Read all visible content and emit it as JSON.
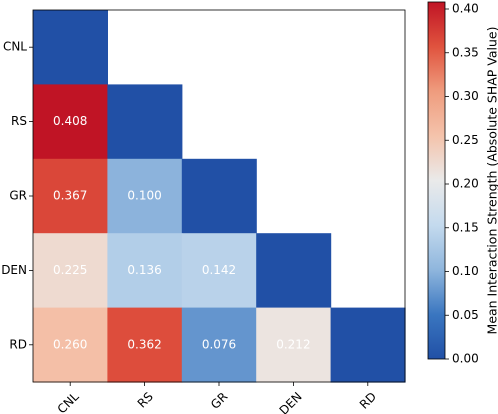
{
  "chart_data": {
    "type": "heatmap",
    "title": "",
    "xlabel": "",
    "ylabel": "",
    "x_labels": [
      "CNL",
      "RS",
      "GR",
      "DEN",
      "RD"
    ],
    "y_labels": [
      "CNL",
      "RS",
      "GR",
      "DEN",
      "RD"
    ],
    "mask": "upper-triangle (diagonal cells drawn at colorbar minimum, upper cells blank)",
    "values": [
      [
        0.0,
        null,
        null,
        null,
        null
      ],
      [
        0.408,
        0.0,
        null,
        null,
        null
      ],
      [
        0.367,
        0.1,
        0.0,
        null,
        null
      ],
      [
        0.225,
        0.136,
        0.142,
        0.0,
        null
      ],
      [
        0.26,
        0.362,
        0.076,
        0.212,
        0.0
      ]
    ],
    "cell_labels": [
      [
        "",
        "",
        "",
        "",
        ""
      ],
      [
        "0.408",
        "",
        "",
        "",
        ""
      ],
      [
        "0.367",
        "0.100",
        "",
        "",
        ""
      ],
      [
        "0.225",
        "0.136",
        "0.142",
        "",
        ""
      ],
      [
        "0.260",
        "0.362",
        "0.076",
        "0.212",
        ""
      ]
    ],
    "colorbar": {
      "label": "Mean Interaction Strength (Absolute SHAP Value)",
      "range": [
        0.0,
        0.408
      ],
      "ticks": [
        "0.00",
        "0.05",
        "0.10",
        "0.15",
        "0.20",
        "0.25",
        "0.30",
        "0.35",
        "0.40"
      ],
      "colormap": "coolwarm-like (blue low, red high)",
      "stops": [
        "#2150a6",
        "#3a76c0",
        "#8fb6dd",
        "#c4daee",
        "#eaeaea",
        "#f4c3ab",
        "#ef9c7e",
        "#e0533e",
        "#c01425"
      ]
    }
  }
}
